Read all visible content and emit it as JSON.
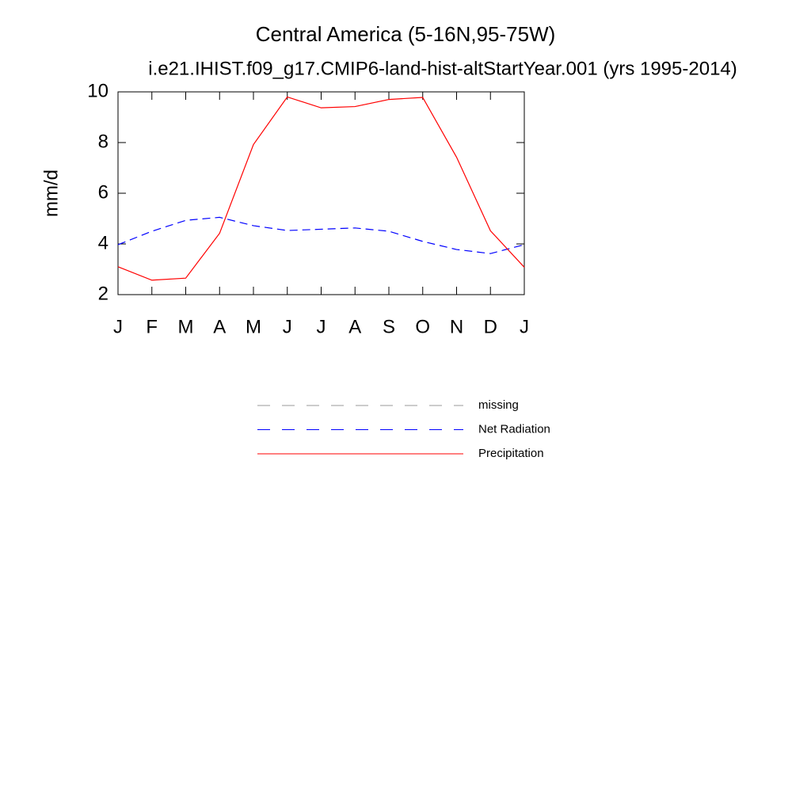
{
  "chart_data": {
    "type": "line",
    "title": "Central America (5-16N,95-75W)",
    "subtitle": "i.e21.IHIST.f09_g17.CMIP6-land-hist-altStartYear.001 (yrs 1995-2014)",
    "ylabel": "mm/d",
    "categories": [
      "J",
      "F",
      "M",
      "A",
      "M",
      "J",
      "J",
      "A",
      "S",
      "O",
      "N",
      "D",
      "J"
    ],
    "series": [
      {
        "name": "missing",
        "color": "#999999",
        "dash": true,
        "values": [
          null,
          null,
          null,
          null,
          null,
          null,
          null,
          null,
          null,
          null,
          null,
          null,
          null
        ]
      },
      {
        "name": "Net Radiation",
        "color": "#0000ff",
        "dash": true,
        "values": [
          3.97,
          4.5,
          4.93,
          5.05,
          4.72,
          4.53,
          4.58,
          4.63,
          4.5,
          4.1,
          3.78,
          3.62,
          3.97
        ]
      },
      {
        "name": "Precipitation",
        "color": "#ff0000",
        "dash": false,
        "values": [
          3.1,
          2.57,
          2.65,
          4.42,
          7.92,
          9.8,
          9.37,
          9.42,
          9.7,
          9.78,
          7.42,
          4.52,
          3.08
        ]
      }
    ],
    "ylim": [
      2,
      10
    ],
    "yticks": [
      2,
      4,
      6,
      8,
      10
    ],
    "grid": false
  }
}
